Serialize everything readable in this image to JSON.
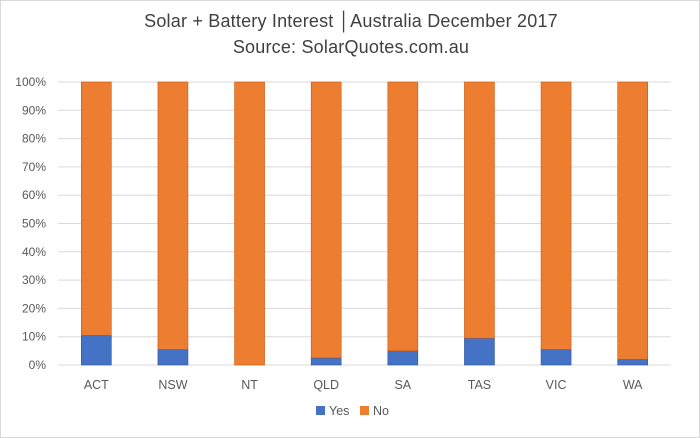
{
  "chart_title": "Solar + Battery Interest │Australia December 2017",
  "chart_subtitle": "Source: SolarQuotes.com.au",
  "colors": {
    "yes": "#4472c4",
    "no": "#ed7d31",
    "grid": "#d9d9d9",
    "text": "#595959"
  },
  "chart_data": {
    "type": "bar",
    "stacked": "percent",
    "title": "Solar + Battery Interest │Australia December 2017",
    "subtitle": "Source: SolarQuotes.com.au",
    "categories": [
      "ACT",
      "NSW",
      "NT",
      "QLD",
      "SA",
      "TAS",
      "VIC",
      "WA"
    ],
    "series": [
      {
        "name": "Yes",
        "values": [
          10.5,
          5.5,
          0,
          2.5,
          5,
          9.5,
          5.5,
          2
        ]
      },
      {
        "name": "No",
        "values": [
          89.5,
          94.5,
          100,
          97.5,
          95,
          90.5,
          94.5,
          98
        ]
      }
    ],
    "yticks": [
      "0%",
      "10%",
      "20%",
      "30%",
      "40%",
      "50%",
      "60%",
      "70%",
      "80%",
      "90%",
      "100%"
    ],
    "ylim": [
      0,
      100
    ],
    "grid": true,
    "legend": "bottom"
  }
}
